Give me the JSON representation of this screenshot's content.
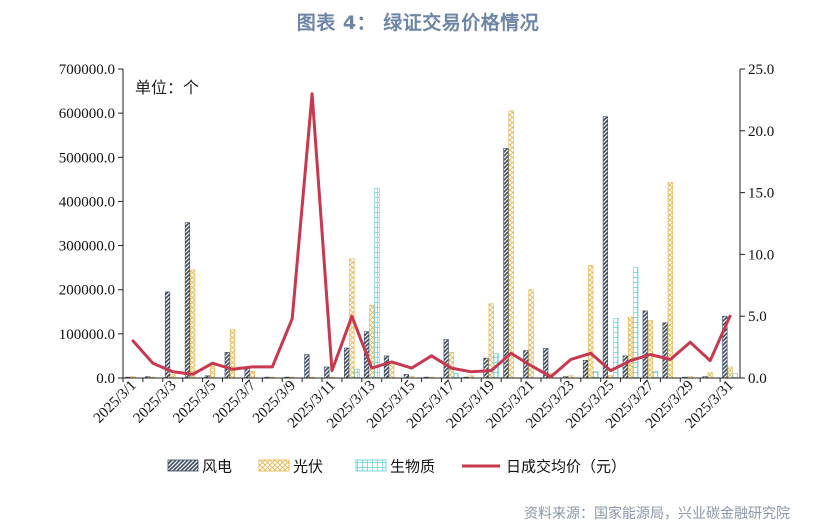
{
  "title": "图表 4：  绿证交易价格情况",
  "unit_label": "单位：个",
  "source": "资料来源：国家能源局，兴业碳金融研究院",
  "colors": {
    "wind": "#3A4A63",
    "solar": "#E3B54A",
    "biomass": "#5ECFD6",
    "price": "#C8384E"
  },
  "chart_data": {
    "type": "bar",
    "categories": [
      "2025/3/1",
      "2025/3/2",
      "2025/3/3",
      "2025/3/4",
      "2025/3/5",
      "2025/3/6",
      "2025/3/7",
      "2025/3/8",
      "2025/3/9",
      "2025/3/10",
      "2025/3/11",
      "2025/3/12",
      "2025/3/13",
      "2025/3/14",
      "2025/3/15",
      "2025/3/16",
      "2025/3/17",
      "2025/3/18",
      "2025/3/19",
      "2025/3/20",
      "2025/3/21",
      "2025/3/22",
      "2025/3/23",
      "2025/3/24",
      "2025/3/25",
      "2025/3/26",
      "2025/3/27",
      "2025/3/28",
      "2025/3/29",
      "2025/3/30",
      "2025/3/31"
    ],
    "tick_labels": [
      "2025/3/1",
      "2025/3/3",
      "2025/3/5",
      "2025/3/7",
      "2025/3/9",
      "2025/3/11",
      "2025/3/13",
      "2025/3/15",
      "2025/3/17",
      "2025/3/19",
      "2025/3/21",
      "2025/3/23",
      "2025/3/25",
      "2025/3/27",
      "2025/3/29",
      "2025/3/31"
    ],
    "y_left": {
      "min": 0,
      "max": 700000,
      "ticks": [
        "0.0",
        "100000.0",
        "200000.0",
        "300000.0",
        "400000.0",
        "500000.0",
        "600000.0",
        "700000.0"
      ]
    },
    "y_right": {
      "min": 0,
      "max": 25,
      "ticks": [
        "0.0",
        "5.0",
        "10.0",
        "15.0",
        "20.0",
        "25.0"
      ]
    },
    "series": [
      {
        "name": "风电",
        "type": "bar",
        "values": [
          2000,
          3000,
          195000,
          352000,
          5000,
          58000,
          25000,
          2000,
          2000,
          53000,
          25000,
          68000,
          105000,
          50000,
          8000,
          2000,
          87000,
          2000,
          45000,
          520000,
          62000,
          67000,
          3000,
          40000,
          592000,
          50000,
          152000,
          125000,
          2000,
          3000,
          140000
        ]
      },
      {
        "name": "光伏",
        "type": "bar",
        "values": [
          3000,
          2000,
          8000,
          245000,
          30000,
          110000,
          15000,
          2000,
          2000,
          2000,
          2000,
          270000,
          165000,
          30000,
          3000,
          2000,
          58000,
          5000,
          168000,
          605000,
          200000,
          10000,
          5000,
          255000,
          5000,
          138000,
          130000,
          443000,
          3000,
          12000,
          25000
        ]
      },
      {
        "name": "生物质",
        "type": "bar",
        "values": [
          0,
          0,
          0,
          0,
          0,
          0,
          0,
          0,
          0,
          0,
          0,
          20000,
          430000,
          0,
          0,
          0,
          10000,
          0,
          55000,
          0,
          0,
          0,
          0,
          15000,
          135000,
          250000,
          15000,
          0,
          0,
          0,
          10000
        ]
      },
      {
        "name": "日成交均价（元）",
        "type": "line",
        "axis": "right",
        "values": [
          3.0,
          1.2,
          0.5,
          0.3,
          1.2,
          0.7,
          0.9,
          0.9,
          4.8,
          23.0,
          0.6,
          5.0,
          0.8,
          1.3,
          0.8,
          1.8,
          0.8,
          0.5,
          0.6,
          2.0,
          1.0,
          0.1,
          1.5,
          2.0,
          0.6,
          1.4,
          1.9,
          1.5,
          2.9,
          1.4,
          5.0
        ]
      }
    ],
    "legend_position": "bottom",
    "grid": false
  }
}
